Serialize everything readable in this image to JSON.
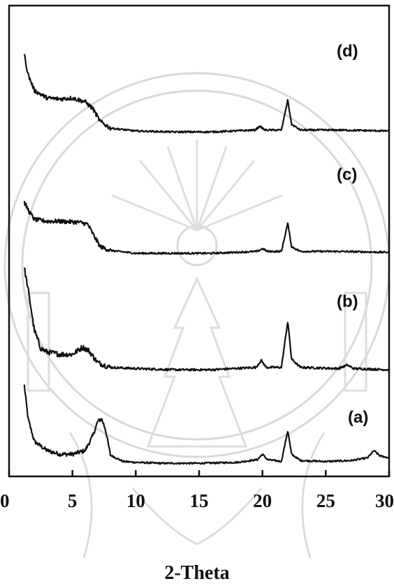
{
  "chart_data": {
    "type": "line",
    "xlabel": "2-Theta",
    "ylabel": "",
    "title": "",
    "xlim": [
      0,
      30
    ],
    "x_ticks": [
      0,
      5,
      10,
      15,
      20,
      25,
      30
    ],
    "grid": false,
    "series": [
      {
        "name": "(a)",
        "points": [
          [
            1.2,
            0.92
          ],
          [
            1.5,
            0.55
          ],
          [
            2,
            0.3
          ],
          [
            3,
            0.2
          ],
          [
            4,
            0.16
          ],
          [
            5,
            0.16
          ],
          [
            6,
            0.2
          ],
          [
            6.6,
            0.36
          ],
          [
            7.0,
            0.52
          ],
          [
            7.3,
            0.55
          ],
          [
            7.6,
            0.44
          ],
          [
            8,
            0.15
          ],
          [
            9,
            0.08
          ],
          [
            10,
            0.07
          ],
          [
            12,
            0.06
          ],
          [
            15,
            0.06
          ],
          [
            18,
            0.07
          ],
          [
            19.6,
            0.1
          ],
          [
            20,
            0.16
          ],
          [
            20.4,
            0.1
          ],
          [
            21.5,
            0.08
          ],
          [
            22.0,
            0.42
          ],
          [
            22.3,
            0.16
          ],
          [
            23,
            0.09
          ],
          [
            25,
            0.08
          ],
          [
            27,
            0.09
          ],
          [
            28.3,
            0.12
          ],
          [
            28.8,
            0.2
          ],
          [
            29.3,
            0.14
          ],
          [
            30,
            0.12
          ]
        ],
        "color": "#111111"
      },
      {
        "name": "(b)",
        "points": [
          [
            1.2,
            0.93
          ],
          [
            1.5,
            0.75
          ],
          [
            2,
            0.4
          ],
          [
            2.5,
            0.25
          ],
          [
            3,
            0.22
          ],
          [
            4,
            0.2
          ],
          [
            5,
            0.2
          ],
          [
            5.8,
            0.26
          ],
          [
            6.3,
            0.23
          ],
          [
            7,
            0.13
          ],
          [
            8,
            0.09
          ],
          [
            10,
            0.08
          ],
          [
            13,
            0.07
          ],
          [
            16,
            0.07
          ],
          [
            19.5,
            0.09
          ],
          [
            19.9,
            0.15
          ],
          [
            20.3,
            0.09
          ],
          [
            21.5,
            0.09
          ],
          [
            22.0,
            0.48
          ],
          [
            22.3,
            0.16
          ],
          [
            23,
            0.09
          ],
          [
            26,
            0.08
          ],
          [
            26.7,
            0.11
          ],
          [
            27.2,
            0.08
          ],
          [
            30,
            0.07
          ]
        ],
        "color": "#111111"
      },
      {
        "name": "(c)",
        "points": [
          [
            1.2,
            0.65
          ],
          [
            1.6,
            0.55
          ],
          [
            2,
            0.47
          ],
          [
            3,
            0.45
          ],
          [
            4,
            0.45
          ],
          [
            5.5,
            0.44
          ],
          [
            6.2,
            0.42
          ],
          [
            6.6,
            0.32
          ],
          [
            7.2,
            0.18
          ],
          [
            8,
            0.14
          ],
          [
            10,
            0.11
          ],
          [
            13,
            0.11
          ],
          [
            16,
            0.11
          ],
          [
            19.6,
            0.13
          ],
          [
            20,
            0.16
          ],
          [
            20.4,
            0.13
          ],
          [
            21.5,
            0.13
          ],
          [
            22.0,
            0.43
          ],
          [
            22.3,
            0.18
          ],
          [
            23,
            0.13
          ],
          [
            26,
            0.13
          ],
          [
            30,
            0.12
          ]
        ],
        "color": "#111111"
      },
      {
        "name": "(d)",
        "points": [
          [
            1.2,
            0.93
          ],
          [
            1.5,
            0.72
          ],
          [
            2,
            0.55
          ],
          [
            3,
            0.47
          ],
          [
            4,
            0.46
          ],
          [
            5,
            0.47
          ],
          [
            6,
            0.43
          ],
          [
            6.6,
            0.36
          ],
          [
            7.2,
            0.22
          ],
          [
            8,
            0.15
          ],
          [
            10,
            0.12
          ],
          [
            13,
            0.11
          ],
          [
            16,
            0.11
          ],
          [
            19.4,
            0.13
          ],
          [
            19.8,
            0.17
          ],
          [
            20.2,
            0.13
          ],
          [
            21.5,
            0.13
          ],
          [
            22.0,
            0.45
          ],
          [
            22.3,
            0.19
          ],
          [
            23,
            0.13
          ],
          [
            26,
            0.13
          ],
          [
            30,
            0.12
          ]
        ],
        "color": "#111111"
      }
    ]
  }
}
